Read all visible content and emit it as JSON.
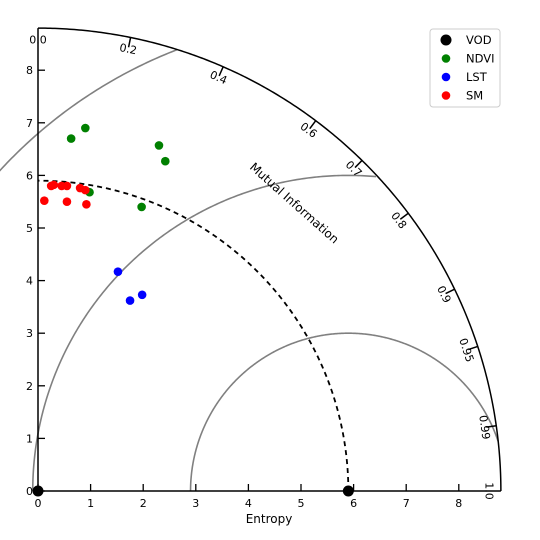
{
  "chart_data": {
    "type": "scatter",
    "subtype": "taylor-like diagram (quarter polar)",
    "xlabel": "Entropy",
    "arc_label": "Mutual Information",
    "radial_max": 8.8,
    "x_ticks": [
      0,
      1,
      2,
      3,
      4,
      5,
      6,
      7,
      8
    ],
    "y_ticks": [
      0,
      1,
      2,
      3,
      4,
      5,
      6,
      7,
      8
    ],
    "angular_ticks": [
      {
        "label": "0.0",
        "value": 0.0
      },
      {
        "label": "0.2",
        "value": 0.2
      },
      {
        "label": "0.4",
        "value": 0.4
      },
      {
        "label": "0.6",
        "value": 0.6
      },
      {
        "label": "0.7",
        "value": 0.7
      },
      {
        "label": "0.8",
        "value": 0.8
      },
      {
        "label": "0.9",
        "value": 0.9
      },
      {
        "label": "0.95",
        "value": 0.95
      },
      {
        "label": "0.99",
        "value": 0.99
      },
      {
        "label": "1.0",
        "value": 1.0
      }
    ],
    "reference_radius": 5.9,
    "reference_center_arcs": [
      {
        "center_x": 5.9,
        "radius": 3.0
      },
      {
        "center_x": 5.9,
        "radius": 6.0
      },
      {
        "center_x": 5.9,
        "radius": 9.0
      }
    ],
    "series": [
      {
        "name": "VOD",
        "color": "#000000",
        "points": [
          [
            0.0,
            0.0
          ],
          [
            5.9,
            0.0
          ]
        ]
      },
      {
        "name": "NDVI",
        "color": "#008000",
        "points": [
          [
            0.63,
            6.7
          ],
          [
            0.9,
            6.9
          ],
          [
            2.3,
            6.57
          ],
          [
            2.42,
            6.27
          ],
          [
            0.98,
            5.68
          ],
          [
            1.97,
            5.4
          ]
        ]
      },
      {
        "name": "LST",
        "color": "#0000ff",
        "points": [
          [
            1.52,
            4.17
          ],
          [
            1.75,
            3.62
          ],
          [
            1.98,
            3.73
          ]
        ]
      },
      {
        "name": "SM",
        "color": "#ff0000",
        "points": [
          [
            0.12,
            5.52
          ],
          [
            0.25,
            5.8
          ],
          [
            0.3,
            5.82
          ],
          [
            0.45,
            5.8
          ],
          [
            0.55,
            5.8
          ],
          [
            0.55,
            5.5
          ],
          [
            0.8,
            5.76
          ],
          [
            0.9,
            5.72
          ],
          [
            0.92,
            5.45
          ]
        ]
      }
    ],
    "legend_position": "top-right"
  }
}
